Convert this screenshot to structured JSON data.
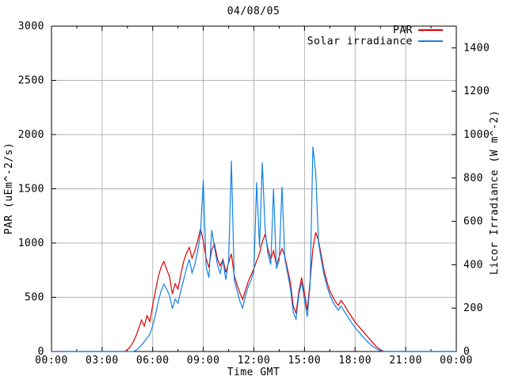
{
  "title": "04/08/05",
  "axes": {
    "x": {
      "label": "Time GMT",
      "tick_labels": [
        "00:00",
        "03:00",
        "06:00",
        "09:00",
        "12:00",
        "15:00",
        "18:00",
        "21:00",
        "00:00"
      ],
      "tick_hours": [
        0,
        3,
        6,
        9,
        12,
        15,
        18,
        21,
        24
      ],
      "minor_tick_interval_hours": 1.5,
      "range_hours": [
        0,
        24
      ]
    },
    "y_left": {
      "label": "PAR (uEm^-2/s)",
      "min": 0,
      "max": 3000,
      "tick_step": 500,
      "tick_labels": [
        "0",
        "500",
        "1000",
        "1500",
        "2000",
        "2500",
        "3000"
      ]
    },
    "y_right": {
      "label": "Licor Irradiance (W m^-2)",
      "min": 0,
      "max": 1500,
      "tick_step": 200,
      "tick_labels": [
        "0",
        "200",
        "400",
        "600",
        "800",
        "1000",
        "1200",
        "1400"
      ]
    }
  },
  "legend": [
    {
      "label": "PAR",
      "color": "#dd0000"
    },
    {
      "label": "Solar irradiance",
      "color": "#0f82e6"
    }
  ],
  "colors": {
    "par": "#dd0000",
    "solar": "#0f82e6",
    "grid": "#b3b3b3",
    "border": "#000000",
    "background": "#ffffff",
    "text": "#000000"
  },
  "chart_data": {
    "type": "line",
    "title": "04/08/05",
    "xlabel": "Time GMT",
    "ylabel_left": "PAR (uEm^-2/s)",
    "ylabel_right": "Licor Irradiance (W m^-2)",
    "x_start_hour": 0,
    "x_end_hour": 24,
    "sample_interval_minutes": 10,
    "grid": true,
    "legend_position": "top-right-inside",
    "series": [
      {
        "name": "PAR",
        "axis": "left",
        "units": "uEm^-2/s",
        "color": "#dd0000",
        "ylim": [
          0,
          3000
        ],
        "values": [
          0,
          0,
          0,
          0,
          0,
          0,
          0,
          0,
          0,
          0,
          0,
          0,
          0,
          0,
          0,
          0,
          0,
          0,
          0,
          0,
          0,
          0,
          0,
          0,
          0,
          0,
          0,
          15,
          45,
          85,
          140,
          210,
          290,
          235,
          330,
          275,
          430,
          560,
          690,
          780,
          830,
          755,
          690,
          530,
          625,
          575,
          710,
          830,
          905,
          960,
          860,
          930,
          1020,
          1130,
          1020,
          860,
          775,
          940,
          990,
          855,
          790,
          850,
          730,
          820,
          900,
          700,
          615,
          540,
          480,
          565,
          645,
          705,
          765,
          835,
          905,
          1010,
          1080,
          945,
          850,
          930,
          800,
          870,
          950,
          880,
          755,
          635,
          420,
          350,
          555,
          680,
          535,
          380,
          650,
          950,
          1100,
          1020,
          880,
          740,
          640,
          560,
          505,
          460,
          425,
          470,
          435,
          390,
          350,
          310,
          270,
          240,
          210,
          180,
          150,
          120,
          90,
          60,
          35,
          15,
          5,
          0,
          0,
          0,
          0,
          0,
          0,
          0,
          0,
          0,
          0,
          0,
          0,
          0,
          0,
          0,
          0,
          0,
          0,
          0,
          0,
          0,
          0,
          0,
          0,
          0,
          0
        ]
      },
      {
        "name": "Solar irradiance",
        "axis": "right",
        "units": "W m^-2",
        "color": "#0f82e6",
        "ylim": [
          0,
          1500
        ],
        "values": [
          0,
          0,
          0,
          0,
          0,
          0,
          0,
          0,
          0,
          0,
          0,
          0,
          0,
          0,
          0,
          0,
          0,
          0,
          0,
          0,
          0,
          0,
          0,
          0,
          0,
          0,
          0,
          0,
          0,
          0,
          5,
          15,
          30,
          45,
          62,
          80,
          120,
          170,
          230,
          280,
          310,
          288,
          258,
          198,
          242,
          222,
          280,
          330,
          382,
          425,
          362,
          402,
          462,
          545,
          790,
          390,
          340,
          560,
          480,
          402,
          360,
          420,
          330,
          420,
          880,
          330,
          282,
          232,
          200,
          258,
          300,
          330,
          372,
          780,
          480,
          872,
          560,
          450,
          400,
          750,
          382,
          420,
          760,
          430,
          360,
          290,
          180,
          150,
          262,
          320,
          238,
          160,
          310,
          945,
          820,
          500,
          420,
          352,
          300,
          262,
          230,
          210,
          190,
          210,
          188,
          168,
          148,
          128,
          110,
          95,
          80,
          65,
          50,
          38,
          27,
          17,
          9,
          4,
          1,
          0,
          0,
          0,
          0,
          0,
          0,
          0,
          0,
          0,
          0,
          0,
          0,
          0,
          0,
          0,
          0,
          0,
          0,
          0,
          0,
          0,
          0,
          0,
          0,
          0,
          0
        ]
      }
    ]
  }
}
